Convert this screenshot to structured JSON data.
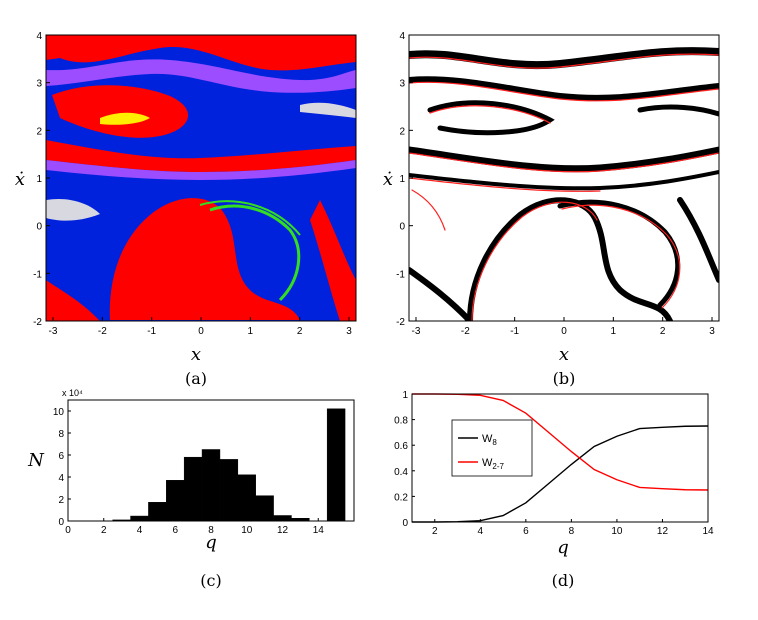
{
  "panels": {
    "a": {
      "caption": "(a)",
      "xlabel": "x",
      "ylabel": "ẋ",
      "xticks": [
        "-3",
        "-2",
        "-1",
        "0",
        "1",
        "2",
        "3"
      ],
      "yticks": [
        "-2",
        "-1",
        "0",
        "1",
        "2",
        "3",
        "4"
      ],
      "colors": {
        "red": "#ff0000",
        "blue": "#0022dd",
        "purple": "#9b4dff",
        "green": "#33dd22",
        "yellow": "#ffee00",
        "gray": "#d8d8e0"
      }
    },
    "b": {
      "caption": "(b)",
      "xlabel": "x",
      "ylabel": "ẋ",
      "xticks": [
        "-3",
        "-2",
        "-1",
        "0",
        "1",
        "2",
        "3"
      ],
      "yticks": [
        "-2",
        "-1",
        "0",
        "1",
        "2",
        "3",
        "4"
      ],
      "colors": {
        "black": "#000000",
        "red": "#ff2020",
        "bg": "#ffffff"
      }
    }
  },
  "chart_data": [
    {
      "panel": "c",
      "type": "bar",
      "caption": "(c)",
      "xlabel": "q",
      "ylabel": "N",
      "scale_label": "x 10⁴",
      "categories": [
        1,
        2,
        3,
        4,
        5,
        6,
        7,
        8,
        9,
        10,
        11,
        12,
        13,
        14,
        15
      ],
      "values": [
        0.0,
        0.01,
        0.1,
        0.45,
        1.7,
        3.7,
        5.8,
        6.5,
        5.6,
        4.2,
        2.3,
        0.5,
        0.25,
        0.0,
        10.2
      ],
      "xlim": [
        0,
        16
      ],
      "ylim": [
        0,
        11
      ],
      "xticks": [
        "0",
        "2",
        "4",
        "6",
        "8",
        "10",
        "12",
        "14"
      ],
      "yticks": [
        "0",
        "2",
        "4",
        "6",
        "8",
        "10"
      ],
      "bar_color": "#000000"
    },
    {
      "panel": "d",
      "type": "line",
      "caption": "(d)",
      "xlabel": "q",
      "x": [
        1,
        2,
        3,
        4,
        5,
        6,
        7,
        8,
        9,
        10,
        11,
        12,
        13,
        14
      ],
      "series": [
        {
          "name": "W",
          "sub": "8",
          "color": "#000000",
          "values": [
            0.0,
            0.0,
            0.002,
            0.01,
            0.05,
            0.15,
            0.3,
            0.45,
            0.59,
            0.67,
            0.73,
            0.74,
            0.748,
            0.75
          ]
        },
        {
          "name": "W",
          "sub": "2-7",
          "color": "#ff0000",
          "values": [
            1.0,
            1.0,
            0.998,
            0.99,
            0.95,
            0.85,
            0.7,
            0.55,
            0.41,
            0.33,
            0.27,
            0.26,
            0.252,
            0.25
          ]
        }
      ],
      "xlim": [
        1,
        14
      ],
      "ylim": [
        0,
        1
      ],
      "xticks": [
        "2",
        "4",
        "6",
        "8",
        "10",
        "12",
        "14"
      ],
      "yticks": [
        "0",
        "0.2",
        "0.4",
        "0.6",
        "0.8",
        "1"
      ],
      "legend_position": "middle-left"
    }
  ]
}
